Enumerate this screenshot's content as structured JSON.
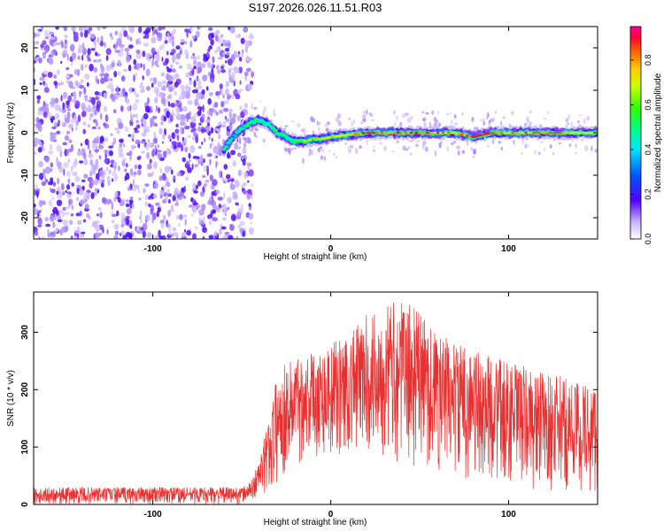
{
  "title": "S197.2026.026.11.51.R03",
  "chart_data": [
    {
      "type": "heatmap",
      "name": "spectrogram",
      "xlabel": "Height of straight line (km)",
      "ylabel": "Frequency (Hz)",
      "xlim": [
        -167,
        150
      ],
      "ylim": [
        -25,
        25
      ],
      "xticks": [
        -100,
        0,
        100
      ],
      "yticks": [
        -20,
        -10,
        0,
        10,
        20
      ],
      "colorbar": {
        "label": "Normalized spectral amplitude",
        "range": [
          0,
          0.95
        ],
        "ticks": [
          0.0,
          0.2,
          0.4,
          0.6,
          0.8
        ]
      },
      "noise_region_x": [
        -167,
        -50
      ],
      "ridge": {
        "x": [
          -60,
          -55,
          -50,
          -45,
          -40,
          -35,
          -30,
          -25,
          -20,
          -15,
          -10,
          -5,
          0,
          10,
          20,
          30,
          40,
          50,
          60,
          70,
          80,
          90,
          100,
          110,
          120,
          130,
          140,
          150
        ],
        "freq": [
          -4,
          -1,
          1,
          2.5,
          3,
          2,
          0,
          -1,
          -2,
          -2,
          -1.5,
          -1.5,
          -1,
          -0.5,
          0,
          0,
          0,
          0,
          0,
          0,
          -1,
          0,
          0,
          0,
          0,
          0,
          0,
          0
        ],
        "amplitude": [
          0.3,
          0.4,
          0.45,
          0.55,
          0.5,
          0.45,
          0.5,
          0.55,
          0.6,
          0.65,
          0.7,
          0.72,
          0.75,
          0.8,
          0.9,
          0.9,
          0.88,
          0.9,
          0.85,
          0.8,
          0.9,
          0.85,
          0.8,
          0.85,
          0.9,
          0.85,
          0.75,
          0.7
        ]
      }
    },
    {
      "type": "line",
      "name": "snr",
      "xlabel": "Height of straight line (km)",
      "ylabel": "SNR (10 * v/v)",
      "xlim": [
        -167,
        150
      ],
      "ylim": [
        0,
        370
      ],
      "xticks": [
        -100,
        0,
        100
      ],
      "yticks": [
        0,
        100,
        200,
        300
      ],
      "series": [
        {
          "name": "SNR",
          "color": "#e83030",
          "envelope_x": [
            -167,
            -50,
            -45,
            -40,
            -35,
            -30,
            -25,
            -20,
            -10,
            0,
            10,
            20,
            30,
            40,
            50,
            60,
            80,
            100,
            120,
            150
          ],
          "envelope_max": [
            30,
            30,
            40,
            80,
            150,
            230,
            250,
            260,
            270,
            280,
            300,
            330,
            350,
            355,
            340,
            300,
            270,
            250,
            230,
            210
          ],
          "envelope_min": [
            0,
            0,
            5,
            10,
            15,
            30,
            50,
            70,
            80,
            80,
            80,
            80,
            80,
            70,
            60,
            50,
            40,
            30,
            20,
            10
          ]
        }
      ]
    }
  ]
}
